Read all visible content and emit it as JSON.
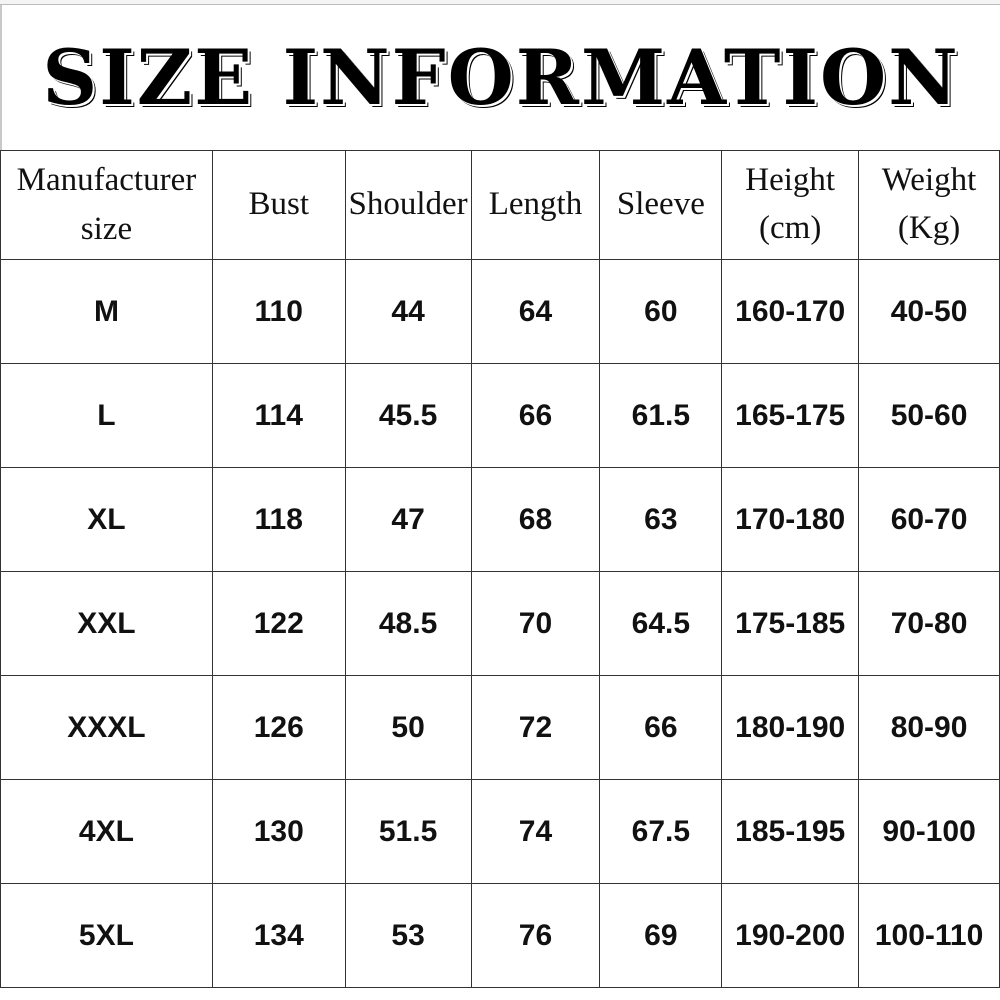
{
  "title": "SIZE INFORMATION",
  "headers": [
    "Manufacturer size",
    "Bust",
    "Shoulder",
    "Length",
    "Sleeve",
    "Height (cm)",
    "Weight (Kg)"
  ],
  "rows": [
    [
      "M",
      "110",
      "44",
      "64",
      "60",
      "160-170",
      "40-50"
    ],
    [
      "L",
      "114",
      "45.5",
      "66",
      "61.5",
      "165-175",
      "50-60"
    ],
    [
      "XL",
      "118",
      "47",
      "68",
      "63",
      "170-180",
      "60-70"
    ],
    [
      "XXL",
      "122",
      "48.5",
      "70",
      "64.5",
      "175-185",
      "70-80"
    ],
    [
      "XXXL",
      "126",
      "50",
      "72",
      "66",
      "180-190",
      "80-90"
    ],
    [
      "4XL",
      "130",
      "51.5",
      "74",
      "67.5",
      "185-195",
      "90-100"
    ],
    [
      "5XL",
      "134",
      "53",
      "76",
      "69",
      "190-200",
      "100-110"
    ]
  ]
}
